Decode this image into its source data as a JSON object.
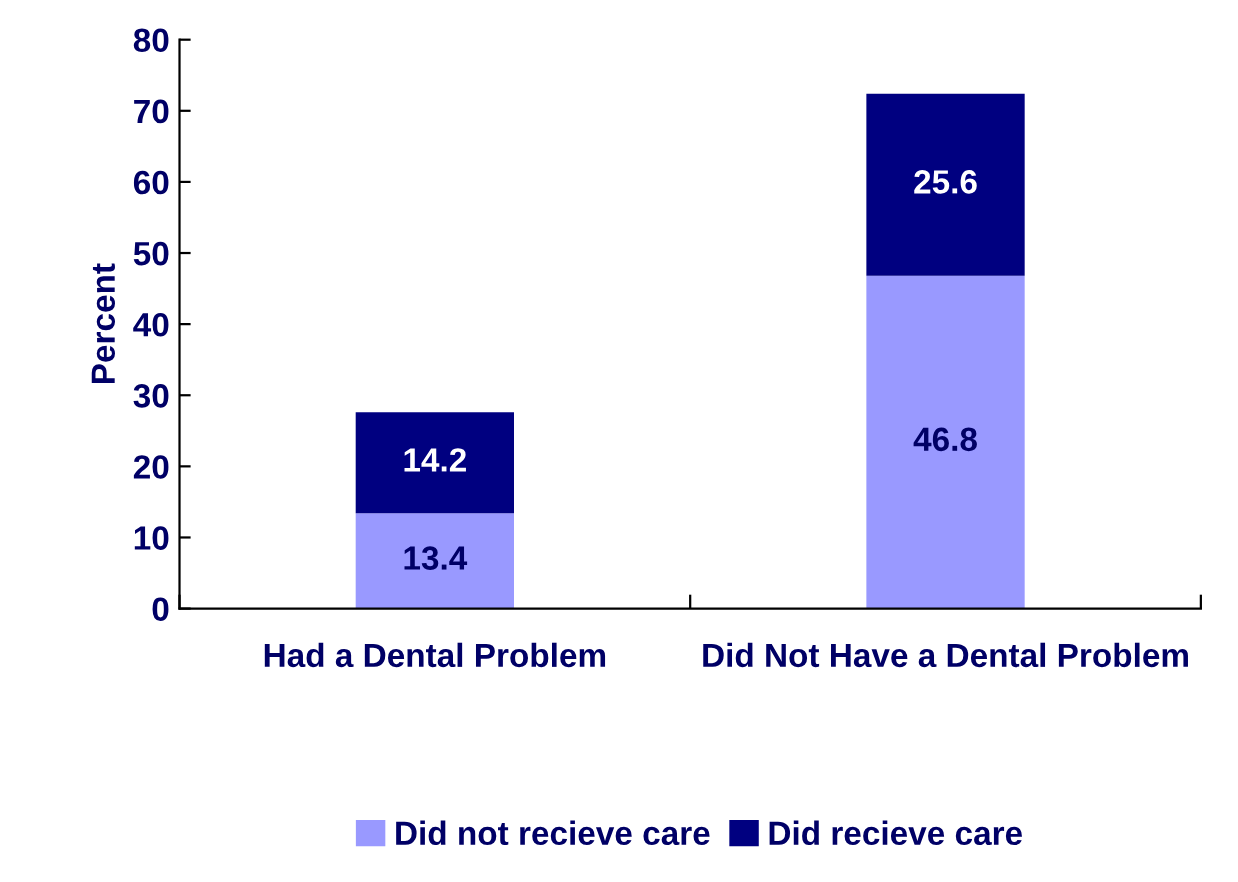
{
  "chart_data": {
    "type": "bar",
    "stacked": true,
    "ylabel": "Percent",
    "categories": [
      "Had a Dental Problem",
      "Did Not Have a Dental Problem"
    ],
    "series": [
      {
        "name": "Did not recieve care",
        "color": "#9999ff",
        "values": [
          13.4,
          46.8
        ]
      },
      {
        "name": "Did recieve care",
        "color": "#000080",
        "values": [
          14.2,
          25.6
        ]
      }
    ],
    "ylim": [
      0,
      80
    ],
    "yticks": [
      0,
      10,
      20,
      30,
      40,
      50,
      60,
      70,
      80
    ],
    "data_labels": true,
    "grid": false,
    "legend": "bottom"
  }
}
